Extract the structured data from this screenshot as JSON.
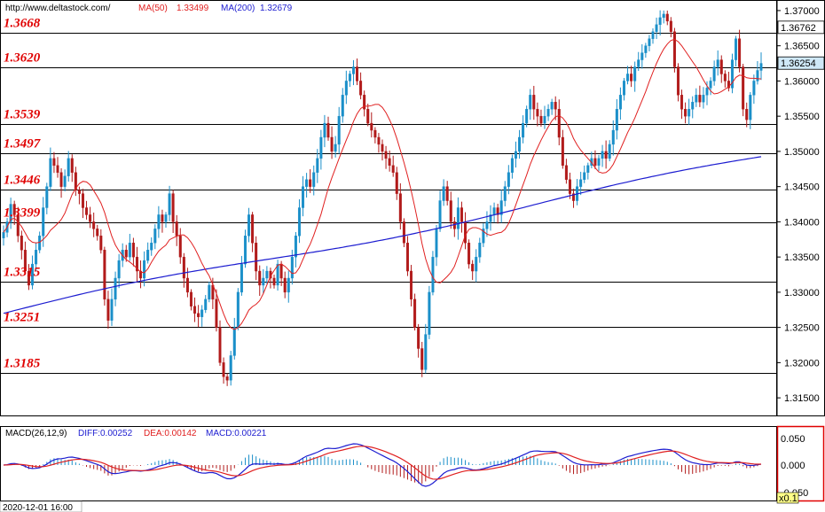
{
  "header": {
    "source": "http://www.deltastock.com/",
    "ma50_label": "MA(50)",
    "ma50_value": "1.33499",
    "ma200_label": "MA(200)",
    "ma200_value": "1.32679"
  },
  "macd": {
    "label": "MACD(26,12,9)",
    "diff_label": "DIFF:0.00252",
    "dea_label": "DEA:0.00142",
    "macd_label": "MACD:0.00221",
    "y_ticks": [
      "0.050",
      "0.000",
      "-0.050"
    ],
    "scale_badge": "x0.1"
  },
  "footer": {
    "timestamp": "2020-12-01 16:00"
  },
  "colors": {
    "up": "#1a8fc9",
    "down": "#b11a1a",
    "ma50": "#e02020",
    "ma200": "#1c1cd0",
    "level_text": "#e00000",
    "diff": "#1c1cd0",
    "dea": "#e02020"
  },
  "chart_data": {
    "type": "candlestick",
    "ylim": [
      1.3125,
      1.3715
    ],
    "y_ticks": [
      "1.37000",
      "1.36500",
      "1.36000",
      "1.35500",
      "1.35000",
      "1.34500",
      "1.34000",
      "1.33500",
      "1.33000",
      "1.32500",
      "1.32000",
      "1.31500"
    ],
    "y_tick_values": [
      1.37,
      1.365,
      1.36,
      1.355,
      1.35,
      1.345,
      1.34,
      1.335,
      1.33,
      1.325,
      1.32,
      1.315
    ],
    "last_price_tags": [
      "1.36762",
      "1.36254"
    ],
    "last_price_values": [
      1.36762,
      1.36254
    ],
    "levels": [
      {
        "value": 1.3668,
        "label": "1.3668"
      },
      {
        "value": 1.362,
        "label": "1.3620"
      },
      {
        "value": 1.3539,
        "label": "1.3539"
      },
      {
        "value": 1.3497,
        "label": "1.3497"
      },
      {
        "value": 1.3446,
        "label": "1.3446"
      },
      {
        "value": 1.3399,
        "label": "1.3399"
      },
      {
        "value": 1.3315,
        "label": "1.3315"
      },
      {
        "value": 1.3251,
        "label": "1.3251"
      },
      {
        "value": 1.3185,
        "label": "1.3185"
      }
    ],
    "close_path": [
      1.3385,
      1.34,
      1.3425,
      1.341,
      1.338,
      1.336,
      1.333,
      1.331,
      1.334,
      1.336,
      1.338,
      1.342,
      1.345,
      1.349,
      1.348,
      1.347,
      1.345,
      1.3465,
      1.349,
      1.347,
      1.3445,
      1.344,
      1.342,
      1.341,
      1.34,
      1.339,
      1.338,
      1.336,
      1.329,
      1.326,
      1.329,
      1.332,
      1.3345,
      1.336,
      1.335,
      1.337,
      1.335,
      1.333,
      1.332,
      1.3345,
      1.336,
      1.337,
      1.339,
      1.341,
      1.34,
      1.341,
      1.344,
      1.34,
      1.338,
      1.335,
      1.332,
      1.33,
      1.328,
      1.327,
      1.3265,
      1.3275,
      1.329,
      1.331,
      1.329,
      1.325,
      1.32,
      1.318,
      1.3175,
      1.321,
      1.325,
      1.33,
      1.334,
      1.338,
      1.341,
      1.337,
      1.333,
      1.331,
      1.332,
      1.333,
      1.332,
      1.331,
      1.334,
      1.332,
      1.33,
      1.332,
      1.335,
      1.338,
      1.342,
      1.345,
      1.346,
      1.345,
      1.347,
      1.349,
      1.352,
      1.354,
      1.352,
      1.35,
      1.351,
      1.355,
      1.358,
      1.36,
      1.361,
      1.362,
      1.36,
      1.358,
      1.356,
      1.354,
      1.353,
      1.352,
      1.351,
      1.35,
      1.349,
      1.348,
      1.347,
      1.344,
      1.34,
      1.337,
      1.333,
      1.329,
      1.325,
      1.322,
      1.319,
      1.324,
      1.33,
      1.335,
      1.339,
      1.343,
      1.345,
      1.343,
      1.34,
      1.339,
      1.342,
      1.34,
      1.337,
      1.334,
      1.333,
      1.335,
      1.337,
      1.339,
      1.34,
      1.341,
      1.342,
      1.341,
      1.343,
      1.345,
      1.347,
      1.349,
      1.35,
      1.352,
      1.354,
      1.356,
      1.358,
      1.356,
      1.355,
      1.354,
      1.355,
      1.356,
      1.357,
      1.356,
      1.352,
      1.348,
      1.346,
      1.344,
      1.343,
      1.345,
      1.346,
      1.347,
      1.348,
      1.349,
      1.348,
      1.349,
      1.35,
      1.349,
      1.351,
      1.353,
      1.356,
      1.358,
      1.36,
      1.361,
      1.36,
      1.362,
      1.363,
      1.364,
      1.365,
      1.366,
      1.367,
      1.368,
      1.369,
      1.3695,
      1.3685,
      1.367,
      1.362,
      1.358,
      1.356,
      1.355,
      1.356,
      1.357,
      1.358,
      1.357,
      1.358,
      1.359,
      1.36,
      1.362,
      1.363,
      1.361,
      1.36,
      1.359,
      1.363,
      1.366,
      1.362,
      1.356,
      1.3545,
      1.358,
      1.36,
      1.3615,
      1.3625
    ]
  }
}
